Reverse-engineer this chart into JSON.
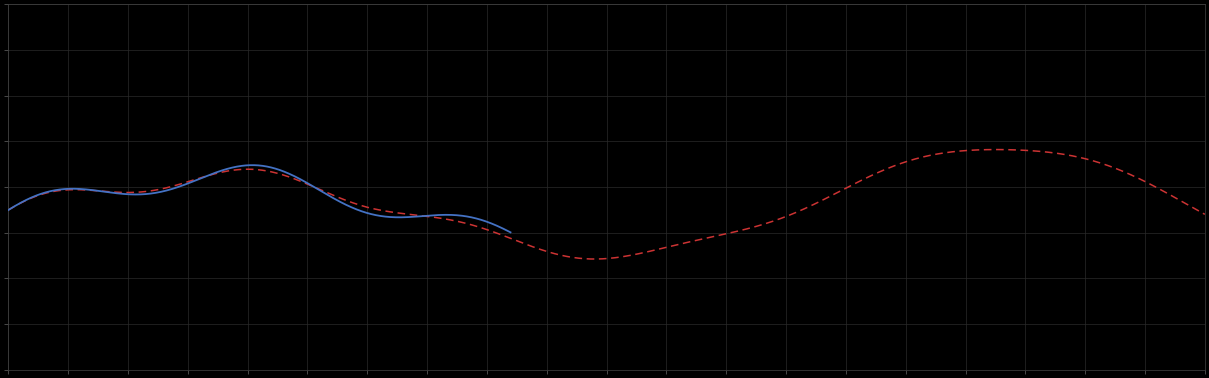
{
  "background_color": "#000000",
  "plot_bg_color": "#000000",
  "grid_color": "#2a2a2a",
  "spine_color": "#444444",
  "tick_color": "#666666",
  "line1_color": "#4472c4",
  "line2_color": "#cc3333",
  "xlim": [
    0,
    100
  ],
  "ylim": [
    0,
    10
  ],
  "figsize": [
    12.09,
    3.78
  ],
  "dpi": 100,
  "grid_nx": 20,
  "grid_ny": 8,
  "blue_end_x": 42
}
